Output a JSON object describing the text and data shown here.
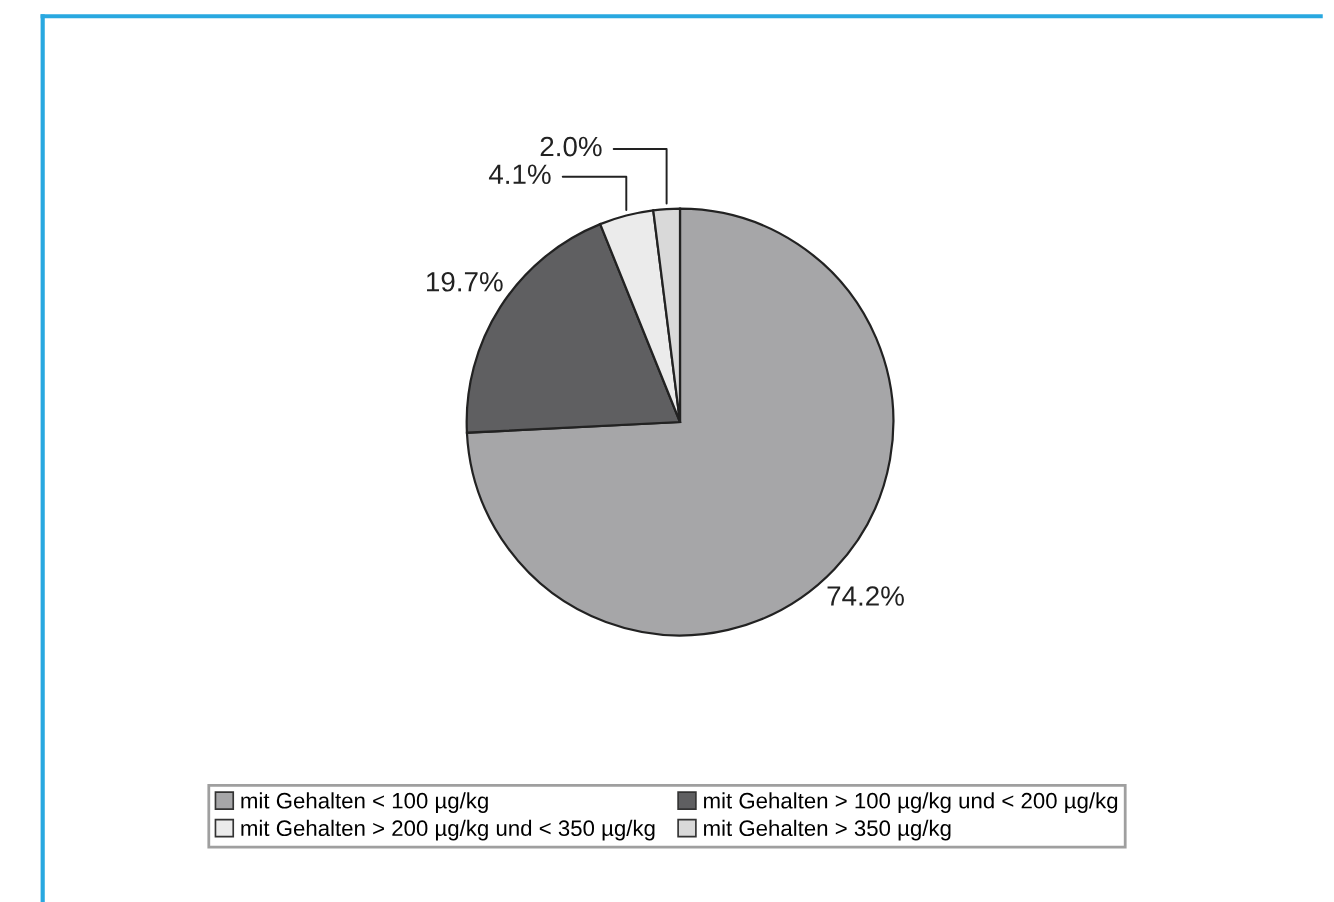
{
  "chart_data": {
    "type": "pie",
    "categories": [
      "mit Gehalten < 100 µg/kg",
      "mit Gehalten > 100 µg/kg und < 200 µg/kg",
      "mit Gehalten > 200 µg/kg und < 350 µg/kg",
      "mit Gehalten > 350 µg/kg"
    ],
    "values": [
      74.2,
      19.7,
      4.1,
      2.0
    ],
    "value_labels": [
      "74.2%",
      "19.7%",
      "4.1%",
      "2.0%"
    ],
    "colors": [
      "#a6a6a8",
      "#5f5f61",
      "#ebebeb",
      "#d9d9d9"
    ],
    "legend": "bottom"
  }
}
